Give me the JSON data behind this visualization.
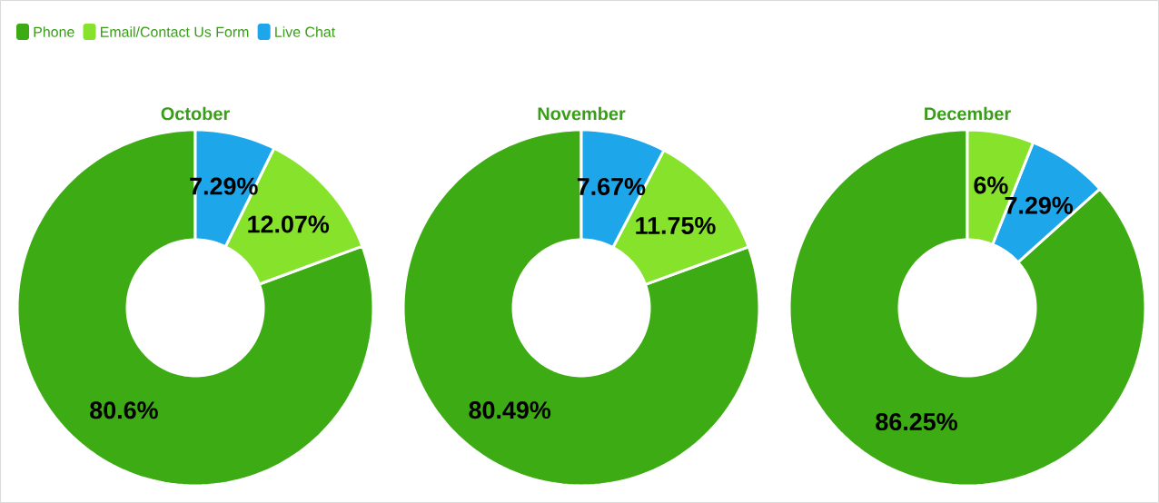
{
  "chart_data": [
    {
      "type": "donut",
      "title": "October",
      "categories": [
        "Phone",
        "Email/Contact Us Form",
        "Live Chat"
      ],
      "values": [
        80.6,
        12.07,
        7.29
      ],
      "value_labels": [
        "80.6%",
        "12.07%",
        "7.29%"
      ],
      "colors": [
        "#3dab14",
        "#86e22b",
        "#1ea6ea"
      ],
      "legend": "top left"
    },
    {
      "type": "donut",
      "title": "November",
      "categories": [
        null,
        null,
        null
      ],
      "values": [
        80.49,
        11.75,
        7.67
      ],
      "value_labels": [
        "80.49%",
        "11.75%",
        "7.67%"
      ],
      "colors": [
        "#3dab14",
        "#86e22b",
        "#1ea6ea"
      ]
    },
    {
      "type": "donut",
      "title": "December",
      "categories": [
        null,
        null,
        null
      ],
      "values": [
        86.25,
        7.29,
        6
      ],
      "value_labels": [
        "86.25%",
        "7.29%",
        "6%"
      ],
      "colors": [
        "#3dab14",
        "#1ea6ea",
        "#86e22b"
      ]
    }
  ]
}
